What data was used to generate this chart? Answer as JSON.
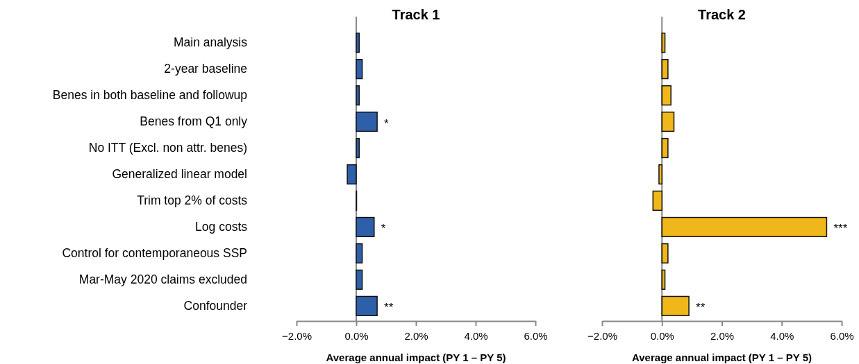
{
  "chart_data": [
    {
      "type": "bar",
      "orientation": "horizontal",
      "title": "Track 1",
      "xlabel": "Average annual impact (PY 1 – PY 5)",
      "categories": [
        "Main analysis",
        "2-year baseline",
        "Benes in both baseline and followup",
        "Benes from Q1 only",
        "No ITT (Excl. non attr. benes)",
        "Generalized linear model",
        "Trim top 2% of costs",
        "Log costs",
        "Control for contemporaneous SSP",
        "Mar-May 2020 claims excluded",
        "Confounder"
      ],
      "values": [
        0.1,
        0.2,
        0.1,
        0.7,
        0.1,
        -0.3,
        0.0,
        0.6,
        0.2,
        0.2,
        0.7
      ],
      "color": "#2e5fa9",
      "xlim": [
        -2,
        6
      ],
      "xticks": [
        {
          "value": -2,
          "label": "−2.0%"
        },
        {
          "value": 0,
          "label": "0.0%"
        },
        {
          "value": 2,
          "label": "2.0%"
        },
        {
          "value": 4,
          "label": "4.0%"
        },
        {
          "value": 6,
          "label": "6.0%"
        }
      ],
      "annotations": [
        {
          "text": "*",
          "x": 0.7,
          "y": "Benes from Q1 only"
        },
        {
          "text": "*",
          "x": 0.6,
          "y": "Log costs"
        },
        {
          "text": "**",
          "x": 0.7,
          "y": "Confounder"
        }
      ]
    },
    {
      "type": "bar",
      "orientation": "horizontal",
      "title": "Track 2",
      "xlabel": "Average annual impact (PY 1 – PY 5)",
      "categories": [
        "Main analysis",
        "2-year baseline",
        "Benes in both baseline and followup",
        "Benes from Q1 only",
        "No ITT (Excl. non attr. benes)",
        "Generalized linear model",
        "Trim top 2% of costs",
        "Log costs",
        "Control for contemporaneous SSP",
        "Mar-May 2020 claims excluded",
        "Confounder"
      ],
      "values": [
        0.1,
        0.2,
        0.3,
        0.4,
        0.2,
        -0.1,
        -0.3,
        5.5,
        0.2,
        0.1,
        0.9
      ],
      "color": "#f0b71b",
      "xlim": [
        -2,
        6
      ],
      "xticks": [
        {
          "value": -2,
          "label": "−2.0%"
        },
        {
          "value": 0,
          "label": "0.0%"
        },
        {
          "value": 2,
          "label": "2.0%"
        },
        {
          "value": 4,
          "label": "4.0%"
        },
        {
          "value": 6,
          "label": "6.0%"
        }
      ],
      "annotations": [
        {
          "text": "***",
          "x": 5.5,
          "y": "Log costs"
        },
        {
          "text": "**",
          "x": 0.9,
          "y": "Confounder"
        }
      ],
      "tick_labels": "x"
    }
  ]
}
